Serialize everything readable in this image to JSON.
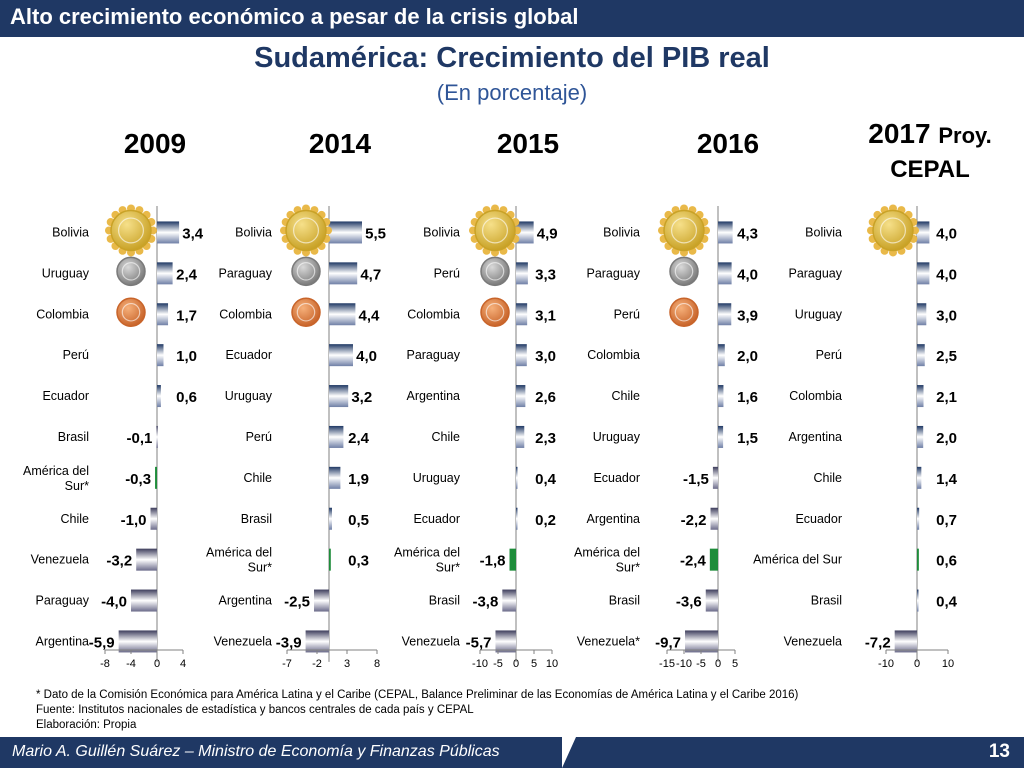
{
  "header": {
    "banner": "Alto crecimiento económico a pesar de la crisis global",
    "title": "Sudamérica: Crecimiento del PIB real",
    "subtitle": "(En porcentaje)"
  },
  "colors": {
    "navy": "#1f3864",
    "positive_bar": "#1f3864",
    "highlight_bar": "#1e8c3a",
    "negative_bar": "#4a4a6a"
  },
  "chart_data": [
    {
      "type": "bar",
      "orientation": "horizontal",
      "title": "2009",
      "categories": [
        "Bolivia",
        "Uruguay",
        "Colombia",
        "Perú",
        "Ecuador",
        "Brasil",
        "América del Sur*",
        "Chile",
        "Venezuela",
        "Paraguay",
        "Argentina"
      ],
      "values": [
        3.4,
        2.4,
        1.7,
        1.0,
        0.6,
        -0.1,
        -0.3,
        -1.0,
        -3.2,
        -4.0,
        -5.9
      ],
      "value_labels": [
        "3,4",
        "2,4",
        "1,7",
        "1,0",
        "0,6",
        "-0,1",
        "-0,3",
        "-1,0",
        "-3,2",
        "-4,0",
        "-5,9"
      ],
      "xlim": [
        -8,
        4
      ],
      "xticks": [
        -8,
        -4,
        0,
        4
      ],
      "medals": [
        "gold",
        "silver",
        "bronze"
      ]
    },
    {
      "type": "bar",
      "orientation": "horizontal",
      "title": "2014",
      "categories": [
        "Bolivia",
        "Paraguay",
        "Colombia",
        "Ecuador",
        "Uruguay",
        "Perú",
        "Chile",
        "Brasil",
        "América del Sur*",
        "Argentina",
        "Venezuela"
      ],
      "values": [
        5.5,
        4.7,
        4.4,
        4.0,
        3.2,
        2.4,
        1.9,
        0.5,
        0.3,
        -2.5,
        -3.9
      ],
      "value_labels": [
        "5,5",
        "4,7",
        "4,4",
        "4,0",
        "3,2",
        "2,4",
        "1,9",
        "0,5",
        "0,3",
        "-2,5",
        "-3,9"
      ],
      "xlim": [
        -7,
        8
      ],
      "xticks": [
        -7,
        -2,
        3,
        8
      ],
      "medals": [
        "gold",
        "silver",
        "bronze"
      ]
    },
    {
      "type": "bar",
      "orientation": "horizontal",
      "title": "2015",
      "categories": [
        "Bolivia",
        "Perú",
        "Colombia",
        "Paraguay",
        "Argentina",
        "Chile",
        "Uruguay",
        "Ecuador",
        "América del Sur*",
        "Brasil",
        "Venezuela"
      ],
      "values": [
        4.9,
        3.3,
        3.1,
        3.0,
        2.6,
        2.3,
        0.4,
        0.2,
        -1.8,
        -3.8,
        -5.7
      ],
      "value_labels": [
        "4,9",
        "3,3",
        "3,1",
        "3,0",
        "2,6",
        "2,3",
        "0,4",
        "0,2",
        "-1,8",
        "-3,8",
        "-5,7"
      ],
      "xlim": [
        -10,
        10
      ],
      "xticks": [
        -10,
        -5,
        0,
        5,
        10
      ],
      "medals": [
        "gold",
        "silver",
        "bronze"
      ]
    },
    {
      "type": "bar",
      "orientation": "horizontal",
      "title": "2016",
      "categories": [
        "Bolivia",
        "Paraguay",
        "Perú",
        "Colombia",
        "Chile",
        "Uruguay",
        "Ecuador",
        "Argentina",
        "América del Sur*",
        "Brasil",
        "Venezuela*"
      ],
      "values": [
        4.3,
        4.0,
        3.9,
        2.0,
        1.6,
        1.5,
        -1.5,
        -2.2,
        -2.4,
        -3.6,
        -9.7
      ],
      "value_labels": [
        "4,3",
        "4,0",
        "3,9",
        "2,0",
        "1,6",
        "1,5",
        "-1,5",
        "-2,2",
        "-2,4",
        "-3,6",
        "-9,7"
      ],
      "xlim": [
        -15,
        5
      ],
      "xticks": [
        -15,
        -10,
        -5,
        0,
        5
      ],
      "medals": [
        "gold",
        "silver",
        "bronze"
      ]
    },
    {
      "type": "bar",
      "orientation": "horizontal",
      "title": "2017",
      "title_suffix": "Proy.",
      "title_line2": "CEPAL",
      "categories": [
        "Bolivia",
        "Paraguay",
        "Uruguay",
        "Perú",
        "Colombia",
        "Argentina",
        "Chile",
        "Ecuador",
        "América del Sur",
        "Brasil",
        "Venezuela"
      ],
      "values": [
        4.0,
        4.0,
        3.0,
        2.5,
        2.1,
        2.0,
        1.4,
        0.7,
        0.6,
        0.4,
        -7.2
      ],
      "value_labels": [
        "4,0",
        "4,0",
        "3,0",
        "2,5",
        "2,1",
        "2,0",
        "1,4",
        "0,7",
        "0,6",
        "0,4",
        "-7,2"
      ],
      "xlim": [
        -10,
        10
      ],
      "xticks": [
        -10,
        0,
        10
      ],
      "medals": [
        "gold"
      ]
    }
  ],
  "footer": {
    "note": "* Dato de la Comisión Económica para América Latina y el Caribe (CEPAL, Balance Preliminar de las Economías de América Latina y el Caribe 2016)",
    "source": "Fuente: Institutos nacionales de estadística y bancos centrales de cada país y CEPAL",
    "credit": "Elaboración: Propia",
    "presenter": "Mario A. Guillén Suárez – Ministro de Economía y Finanzas Públicas",
    "page": "13"
  }
}
